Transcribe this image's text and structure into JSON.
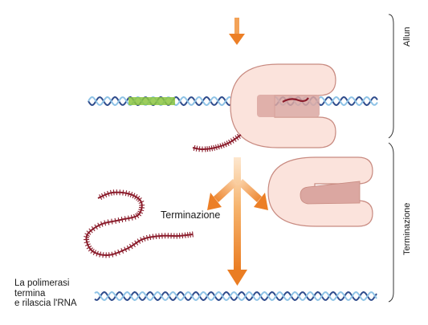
{
  "labels": {
    "terminazione": "Terminazione",
    "final_line1": "La polimerasi",
    "final_line2": "termina",
    "final_line3": "e rilascia l'RNA"
  },
  "phases": {
    "top": "Allun",
    "bottom": "Terminazione"
  },
  "colors": {
    "dna_dark": "#2f4c8c",
    "dna_light": "#8fc3e6",
    "rna": "#8b1d2c",
    "terminator_region": "#8cc63f",
    "polymerase_fill": "#fbe3dc",
    "polymerase_stroke": "#c88a80",
    "channel": "#d9a09a",
    "arrow": "#ef8a2e"
  }
}
